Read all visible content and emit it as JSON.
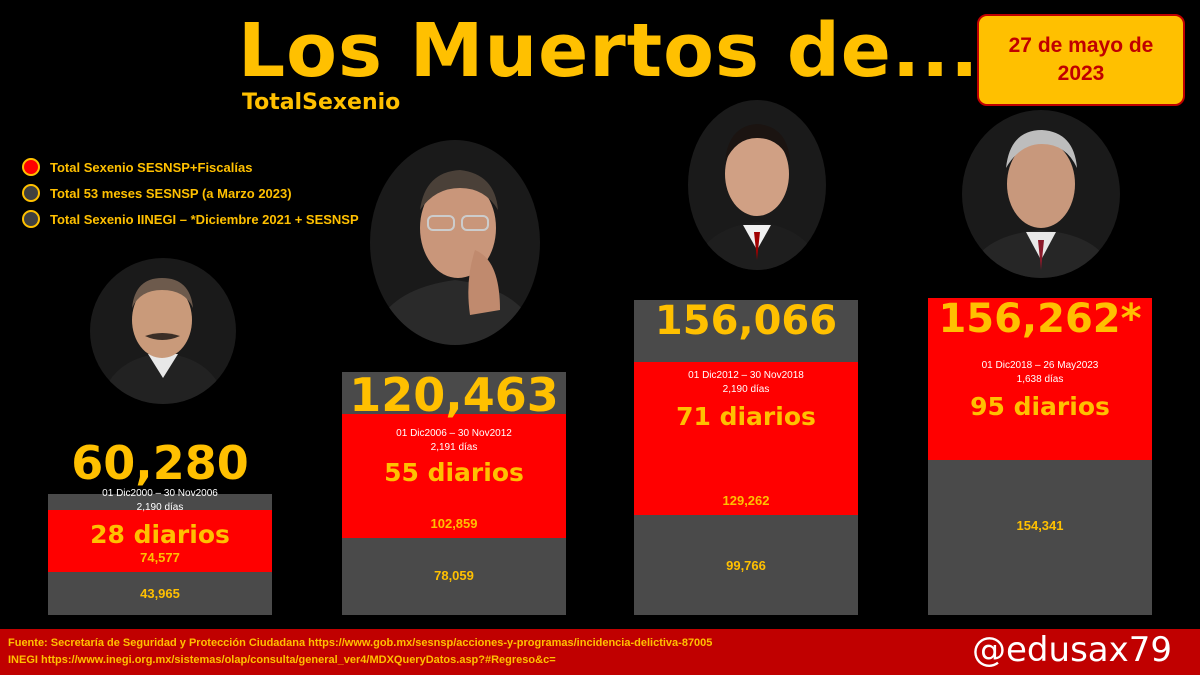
{
  "title": "Los Muertos de...",
  "subtitle": "TotalSexenio",
  "date_badge": "27 de mayo de 2023",
  "legend": [
    {
      "label": "Total Sexenio SESNSP+Fiscalías",
      "color": "#FF0000"
    },
    {
      "label": "Total 53 meses SESNSP (a Marzo 2023)",
      "color": "#404040"
    },
    {
      "label": "Total Sexenio IINEGI – *Diciembre 2021 + SESNSP",
      "color": "#404040"
    }
  ],
  "colors": {
    "inegi": "#4A4A4A",
    "sesnsp": "#FF0000",
    "text": "#FFC000",
    "footer": "#C00000"
  },
  "chart_data": {
    "type": "bar",
    "categories": [
      "01 Dic2000 – 30 Nov2006",
      "01 Dic2006 – 30 Nov2012",
      "01 Dic2012 – 30 Nov2018",
      "01 Dic2018 – 26 May2023"
    ],
    "series": [
      {
        "name": "Total Sexenio IINEGI – *Diciembre 2021 + SESNSP",
        "values": [
          60280,
          120463,
          156066,
          156262
        ]
      },
      {
        "name": "Total Sexenio SESNSP+Fiscalías",
        "values": [
          74577,
          102859,
          129262,
          156262
        ]
      },
      {
        "name": "Total 53 meses SESNSP (a Marzo 2023)",
        "values": [
          43965,
          78059,
          99766,
          154341
        ]
      }
    ],
    "ylim": [
      0,
      160000
    ],
    "bars": [
      {
        "total_label": "60,280",
        "period": "01 Dic2000 – 30 Nov2006",
        "days": "2,190 días",
        "daily": "28 diarios",
        "red_label": "74,577",
        "gray_label": "43,965",
        "red_value": 74577,
        "gray_value": 43965,
        "inegi_value": 60280
      },
      {
        "total_label": "120,463",
        "period": "01 Dic2006 – 30 Nov2012",
        "days": "2,191 días",
        "daily": "55 diarios",
        "red_label": "102,859",
        "gray_label": "78,059",
        "red_value": 102859,
        "gray_value": 78059,
        "inegi_value": 120463
      },
      {
        "total_label": "156,066",
        "period": "01 Dic2012 – 30 Nov2018",
        "days": "2,190 días",
        "daily": "71 diarios",
        "red_label": "129,262",
        "gray_label": "99,766",
        "red_value": 129262,
        "gray_value": 99766,
        "inegi_value": 156066
      },
      {
        "total_label": "156,262*",
        "period": "01 Dic2018 – 26 May2023",
        "days": "1,638 días",
        "daily": "95 diarios",
        "red_label": "",
        "gray_label": "154,341",
        "red_value": 156262,
        "gray_value": 154341,
        "inegi_value": 156262
      }
    ]
  },
  "footer": {
    "source_line1": "Fuente: Secretaría de Seguridad y Protección Ciudadana https://www.gob.mx/sesnsp/acciones-y-programas/incidencia-delictiva-87005",
    "source_line2": "INEGI https://www.inegi.org.mx/sistemas/olap/consulta/general_ver4/MDXQueryDatos.asp?#Regreso&c=",
    "handle": "@edusax79"
  }
}
